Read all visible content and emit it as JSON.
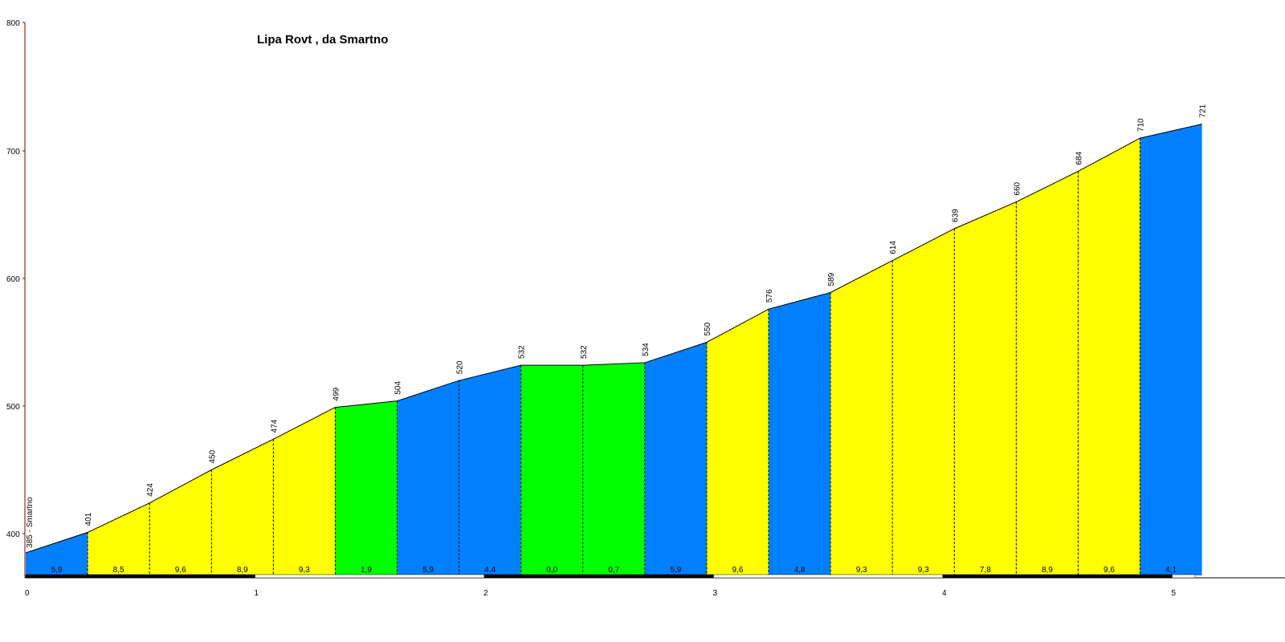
{
  "chart_data": {
    "type": "area",
    "title": "Lipa Rovt , da Smartno",
    "xlabel": "",
    "ylabel": "",
    "xlim": [
      0,
      5.4
    ],
    "ylim": [
      365,
      800
    ],
    "y_ticks": [
      400,
      500,
      600,
      700,
      800
    ],
    "x_ticks": [
      0,
      1,
      2,
      3,
      4,
      5
    ],
    "start_label": "385 - Smartno",
    "points": [
      {
        "x": 0.0,
        "y": 385
      },
      {
        "x": 0.27,
        "y": 401
      },
      {
        "x": 0.54,
        "y": 424
      },
      {
        "x": 0.81,
        "y": 450
      },
      {
        "x": 1.08,
        "y": 474
      },
      {
        "x": 1.35,
        "y": 499
      },
      {
        "x": 1.62,
        "y": 504
      },
      {
        "x": 1.89,
        "y": 520
      },
      {
        "x": 2.16,
        "y": 532
      },
      {
        "x": 2.43,
        "y": 532
      },
      {
        "x": 2.7,
        "y": 534
      },
      {
        "x": 2.97,
        "y": 550
      },
      {
        "x": 3.24,
        "y": 576
      },
      {
        "x": 3.51,
        "y": 589
      },
      {
        "x": 3.78,
        "y": 614
      },
      {
        "x": 4.05,
        "y": 639
      },
      {
        "x": 4.32,
        "y": 660
      },
      {
        "x": 4.59,
        "y": 684
      },
      {
        "x": 4.86,
        "y": 710
      },
      {
        "x": 5.13,
        "y": 721
      }
    ],
    "elevation_labels": [
      "401",
      "424",
      "450",
      "474",
      "499",
      "504",
      "520",
      "532",
      "532",
      "534",
      "550",
      "576",
      "589",
      "614",
      "639",
      "660",
      "684",
      "710",
      "721"
    ],
    "segments": [
      {
        "gradient": "5,9",
        "color": "#0080FF"
      },
      {
        "gradient": "8,5",
        "color": "#FFFF00"
      },
      {
        "gradient": "9,6",
        "color": "#FFFF00"
      },
      {
        "gradient": "8,9",
        "color": "#FFFF00"
      },
      {
        "gradient": "9,3",
        "color": "#FFFF00"
      },
      {
        "gradient": "1,9",
        "color": "#00FF00"
      },
      {
        "gradient": "5,9",
        "color": "#0080FF"
      },
      {
        "gradient": "4,4",
        "color": "#0080FF"
      },
      {
        "gradient": "0,0",
        "color": "#00FF00"
      },
      {
        "gradient": "0,7",
        "color": "#00FF00"
      },
      {
        "gradient": "5,9",
        "color": "#0080FF"
      },
      {
        "gradient": "9,6",
        "color": "#FFFF00"
      },
      {
        "gradient": "4,8",
        "color": "#0080FF"
      },
      {
        "gradient": "9,3",
        "color": "#FFFF00"
      },
      {
        "gradient": "9,3",
        "color": "#FFFF00"
      },
      {
        "gradient": "7,8",
        "color": "#FFFF00"
      },
      {
        "gradient": "8,9",
        "color": "#FFFF00"
      },
      {
        "gradient": "9,6",
        "color": "#FFFF00"
      },
      {
        "gradient": "4,1",
        "color": "#0080FF"
      }
    ],
    "grid": false,
    "legend": "none"
  }
}
